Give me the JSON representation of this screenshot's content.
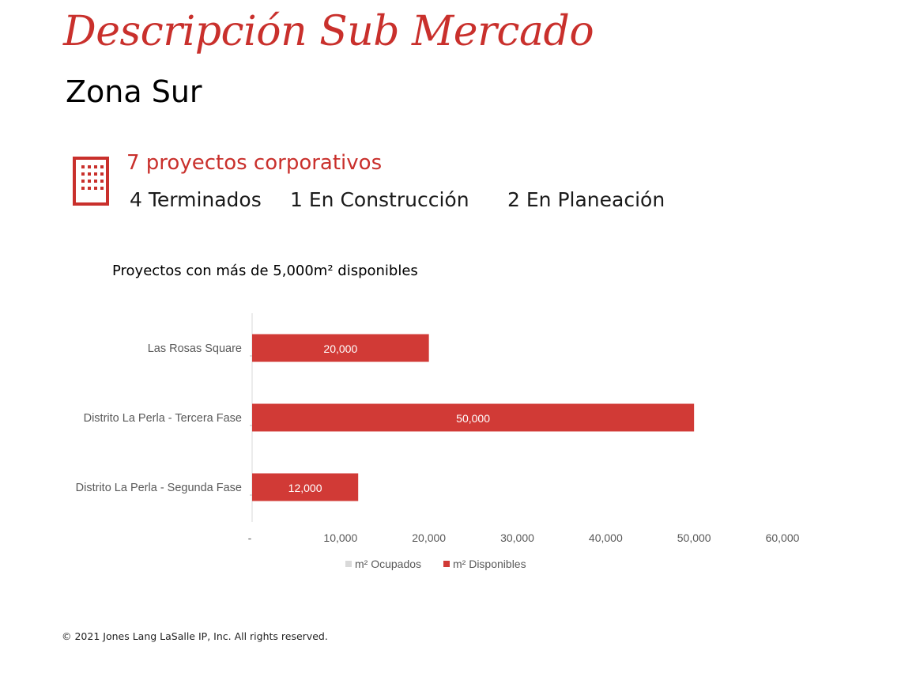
{
  "header": {
    "title": "Descripción Sub Mercado",
    "subtitle": "Zona Sur"
  },
  "summary": {
    "icon": "building-icon",
    "headline": "7 proyectos corporativos",
    "statuses": [
      "4 Terminados",
      "1 En Construcción",
      "2 En Planeación"
    ]
  },
  "colors": {
    "accent": "#c9302c",
    "bar": "#d13a36",
    "occupied": "#d9d9d9"
  },
  "chart_data": {
    "type": "bar",
    "orientation": "horizontal",
    "stacked": true,
    "title": "Proyectos con más de 5,000m² disponibles",
    "categories": [
      "Las Rosas Square",
      "Distrito La Perla -  Tercera Fase",
      "Distrito La Perla -  Segunda Fase"
    ],
    "series": [
      {
        "name": "m² Ocupados",
        "values": [
          0,
          0,
          0
        ],
        "color": "#d9d9d9"
      },
      {
        "name": "m² Disponibles",
        "values": [
          20000,
          50000,
          12000
        ],
        "color": "#d13a36"
      }
    ],
    "data_labels": [
      "20,000",
      "50,000",
      "12,000"
    ],
    "xlim": [
      0,
      60000
    ],
    "xticks": [
      0,
      10000,
      20000,
      30000,
      40000,
      50000,
      60000
    ],
    "xtick_labels": [
      "-",
      "10,000",
      "20,000",
      "30,000",
      "40,000",
      "50,000",
      "60,000"
    ],
    "grid": false,
    "legend_position": "bottom"
  },
  "footer": {
    "text": "© 2021 Jones Lang LaSalle IP, Inc. All rights reserved."
  }
}
